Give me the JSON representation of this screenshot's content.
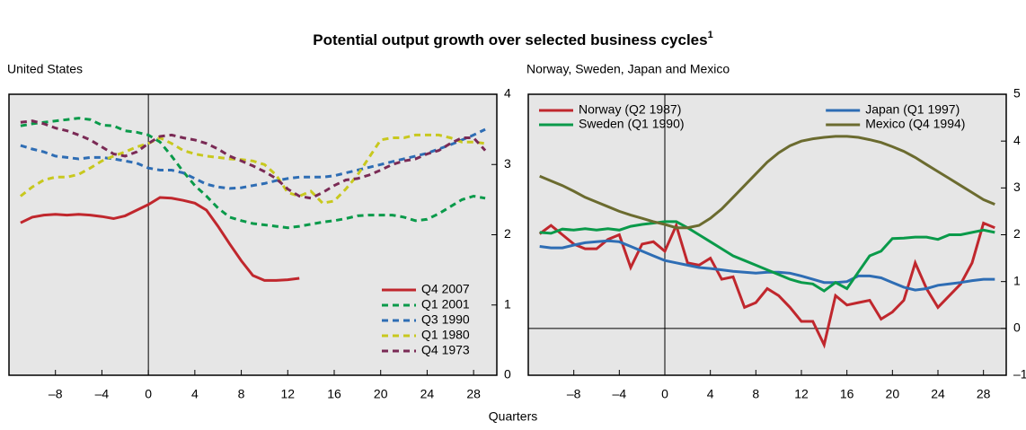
{
  "title": "Potential output growth over selected business cycles",
  "title_note": "1",
  "xlabel": "Quarters",
  "chart_data": [
    {
      "type": "line",
      "title": "United States",
      "legend": "lower right",
      "legend_columns": 1,
      "x": [
        -11,
        -10,
        -9,
        -8,
        -7,
        -6,
        -5,
        -4,
        -3,
        -2,
        -1,
        0,
        1,
        2,
        3,
        4,
        5,
        6,
        7,
        8,
        9,
        10,
        11,
        12,
        13,
        14,
        15,
        16,
        17,
        18,
        19,
        20,
        21,
        22,
        23,
        24,
        25,
        26,
        27,
        28,
        29
      ],
      "xlim": [
        -12,
        30
      ],
      "xticks": [
        {
          "value": -8,
          "label": "–8"
        },
        {
          "value": -4,
          "label": "–4"
        },
        0,
        4,
        8,
        12,
        16,
        20,
        24,
        28
      ],
      "ylim": [
        0,
        4
      ],
      "yticks": [
        0,
        1,
        2,
        3,
        4
      ],
      "zero_line": "x",
      "series": [
        {
          "name": "Q4 2007",
          "color": "#c0272d",
          "linestyle": "solid",
          "values": [
            2.17,
            2.25,
            2.28,
            2.29,
            2.28,
            2.29,
            2.28,
            2.26,
            2.23,
            2.27,
            2.35,
            2.43,
            2.53,
            2.52,
            2.49,
            2.45,
            2.35,
            2.12,
            1.87,
            1.63,
            1.42,
            1.35,
            1.35,
            1.36,
            1.38,
            null,
            null,
            null,
            null,
            null,
            null,
            null,
            null,
            null,
            null,
            null,
            null,
            null,
            null,
            null,
            null
          ]
        },
        {
          "name": "Q1 2001",
          "color": "#0a9a4a",
          "linestyle": "dashed",
          "values": [
            3.55,
            3.58,
            3.6,
            3.62,
            3.64,
            3.66,
            3.64,
            3.56,
            3.55,
            3.48,
            3.46,
            3.42,
            3.32,
            3.12,
            2.9,
            2.7,
            2.55,
            2.38,
            2.25,
            2.2,
            2.16,
            2.14,
            2.12,
            2.1,
            2.12,
            2.15,
            2.18,
            2.2,
            2.23,
            2.27,
            2.28,
            2.28,
            2.28,
            2.25,
            2.2,
            2.22,
            2.3,
            2.4,
            2.5,
            2.55,
            2.52
          ]
        },
        {
          "name": "Q3 1990",
          "color": "#2e6db4",
          "linestyle": "dashed",
          "values": [
            3.27,
            3.22,
            3.18,
            3.12,
            3.1,
            3.08,
            3.1,
            3.1,
            3.08,
            3.05,
            3.02,
            2.95,
            2.92,
            2.92,
            2.88,
            2.8,
            2.72,
            2.68,
            2.66,
            2.67,
            2.7,
            2.73,
            2.77,
            2.8,
            2.82,
            2.82,
            2.82,
            2.84,
            2.88,
            2.92,
            2.96,
            3.0,
            3.04,
            3.08,
            3.12,
            3.16,
            3.22,
            3.28,
            3.35,
            3.42,
            3.5
          ]
        },
        {
          "name": "Q1 1980",
          "color": "#c8c81e",
          "linestyle": "dashed",
          "values": [
            2.55,
            2.68,
            2.78,
            2.82,
            2.82,
            2.86,
            2.95,
            3.05,
            3.12,
            3.18,
            3.25,
            3.3,
            3.38,
            3.3,
            3.2,
            3.15,
            3.12,
            3.1,
            3.08,
            3.07,
            3.05,
            3.0,
            2.85,
            2.6,
            2.55,
            2.62,
            2.45,
            2.48,
            2.65,
            2.85,
            3.1,
            3.35,
            3.38,
            3.38,
            3.42,
            3.42,
            3.42,
            3.38,
            3.32,
            3.32,
            3.3
          ]
        },
        {
          "name": "Q4 1973",
          "color": "#7a2a55",
          "linestyle": "dashed",
          "values": [
            3.6,
            3.62,
            3.58,
            3.52,
            3.48,
            3.42,
            3.35,
            3.25,
            3.15,
            3.12,
            3.18,
            3.3,
            3.4,
            3.42,
            3.38,
            3.35,
            3.3,
            3.22,
            3.12,
            3.05,
            2.98,
            2.9,
            2.8,
            2.65,
            2.55,
            2.52,
            2.6,
            2.7,
            2.78,
            2.8,
            2.85,
            2.92,
            3.0,
            3.05,
            3.08,
            3.15,
            3.2,
            3.3,
            3.38,
            3.38,
            3.2
          ]
        }
      ]
    },
    {
      "type": "line",
      "title": "Norway, Sweden, Japan and Mexico",
      "legend": "top",
      "legend_columns": 2,
      "x": [
        -11,
        -10,
        -9,
        -8,
        -7,
        -6,
        -5,
        -4,
        -3,
        -2,
        -1,
        0,
        1,
        2,
        3,
        4,
        5,
        6,
        7,
        8,
        9,
        10,
        11,
        12,
        13,
        14,
        15,
        16,
        17,
        18,
        19,
        20,
        21,
        22,
        23,
        24,
        25,
        26,
        27,
        28,
        29
      ],
      "xlim": [
        -12,
        30
      ],
      "xticks": [
        {
          "value": -8,
          "label": "–8"
        },
        {
          "value": -4,
          "label": "–4"
        },
        0,
        4,
        8,
        12,
        16,
        20,
        24,
        28
      ],
      "ylim": [
        -1,
        5
      ],
      "yticks": [
        {
          "value": -1,
          "label": "–1"
        },
        0,
        1,
        2,
        3,
        4,
        5
      ],
      "zero_line": "both",
      "series": [
        {
          "name": "Norway (Q2 1987)",
          "color": "#c0272d",
          "linestyle": "solid",
          "values": [
            2.02,
            2.2,
            2.0,
            1.8,
            1.7,
            1.7,
            1.9,
            2.0,
            1.3,
            1.8,
            1.85,
            1.65,
            2.2,
            1.4,
            1.35,
            1.5,
            1.05,
            1.1,
            0.45,
            0.55,
            0.85,
            0.7,
            0.45,
            0.15,
            0.15,
            -0.35,
            0.7,
            0.5,
            0.55,
            0.6,
            0.2,
            0.35,
            0.6,
            1.4,
            0.85,
            0.45,
            0.7,
            0.95,
            1.4,
            2.25,
            2.15
          ]
        },
        {
          "name": "Japan (Q1 1997)",
          "color": "#2e6db4",
          "linestyle": "solid",
          "values": [
            1.75,
            1.72,
            1.72,
            1.78,
            1.83,
            1.85,
            1.87,
            1.85,
            1.75,
            1.65,
            1.55,
            1.45,
            1.4,
            1.35,
            1.3,
            1.28,
            1.25,
            1.22,
            1.2,
            1.18,
            1.2,
            1.2,
            1.18,
            1.12,
            1.05,
            0.98,
            0.98,
            1.0,
            1.12,
            1.12,
            1.08,
            0.98,
            0.88,
            0.82,
            0.85,
            0.92,
            0.95,
            0.98,
            1.02,
            1.05,
            1.05
          ]
        },
        {
          "name": "Sweden (Q1 1990)",
          "color": "#0a9a4a",
          "linestyle": "solid",
          "values": [
            2.05,
            2.03,
            2.12,
            2.1,
            2.13,
            2.1,
            2.13,
            2.1,
            2.18,
            2.22,
            2.25,
            2.28,
            2.28,
            2.15,
            2.0,
            1.85,
            1.7,
            1.55,
            1.45,
            1.35,
            1.25,
            1.15,
            1.05,
            0.98,
            0.95,
            0.8,
            0.98,
            0.85,
            1.2,
            1.55,
            1.65,
            1.92,
            1.93,
            1.95,
            1.95,
            1.9,
            2.0,
            2.0,
            2.05,
            2.1,
            2.05
          ]
        },
        {
          "name": "Mexico (Q4 1994)",
          "color": "#6b6b2f",
          "linestyle": "solid",
          "values": [
            3.25,
            3.15,
            3.05,
            2.93,
            2.8,
            2.7,
            2.6,
            2.5,
            2.42,
            2.35,
            2.28,
            2.22,
            2.15,
            2.15,
            2.2,
            2.35,
            2.55,
            2.8,
            3.05,
            3.3,
            3.55,
            3.75,
            3.9,
            4.0,
            4.05,
            4.08,
            4.1,
            4.1,
            4.08,
            4.03,
            3.97,
            3.88,
            3.78,
            3.65,
            3.5,
            3.35,
            3.2,
            3.05,
            2.9,
            2.75,
            2.65
          ]
        }
      ]
    }
  ]
}
